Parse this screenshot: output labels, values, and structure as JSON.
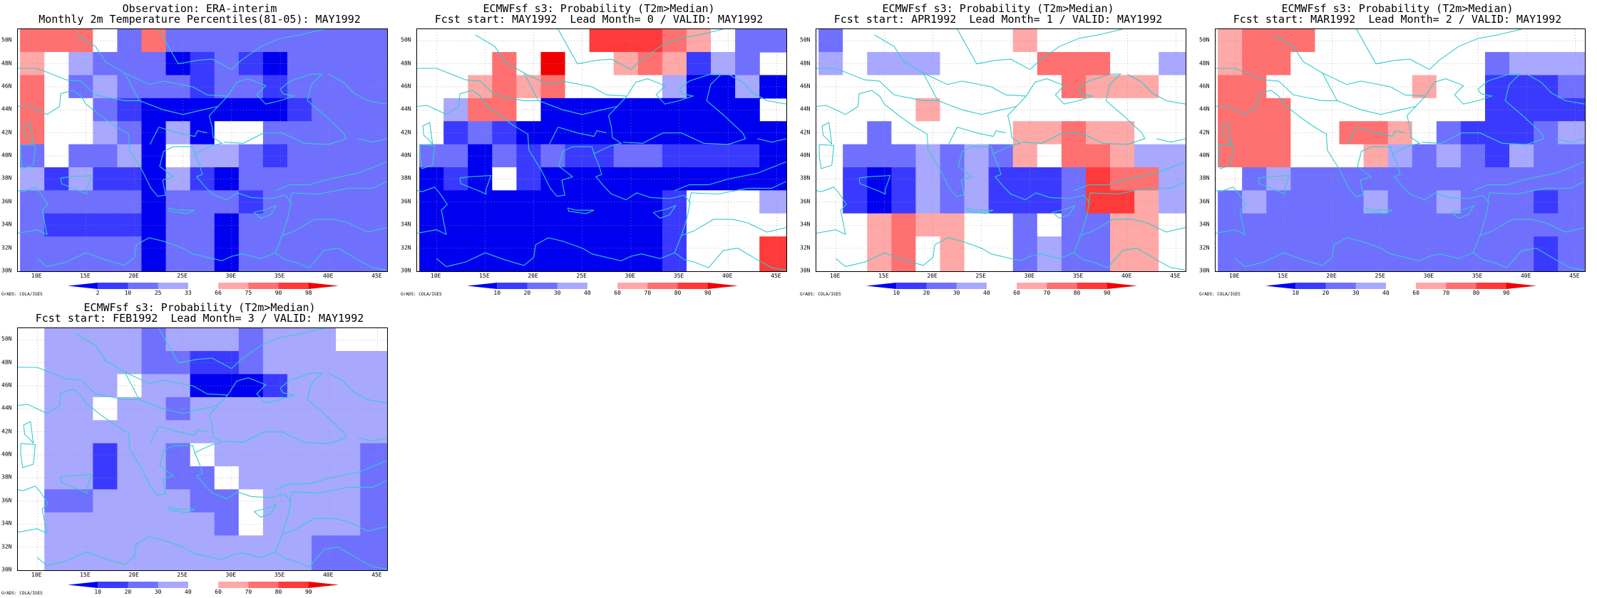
{
  "region": {
    "lat_min": 30,
    "lat_max": 51,
    "lon_min": 8,
    "lon_max": 46
  },
  "lat_ticks": [
    "30N",
    "32N",
    "34N",
    "36N",
    "38N",
    "40N",
    "42N",
    "44N",
    "46N",
    "48N",
    "50N"
  ],
  "lon_ticks": [
    "10E",
    "15E",
    "20E",
    "25E",
    "30E",
    "35E",
    "40E",
    "45E"
  ],
  "credit": "GrADS: COLA/IGES",
  "grid": {
    "lon_start": 8.25,
    "lat_top": 51.0,
    "dlon": 2.5,
    "dlat": 2.0,
    "cols": 15,
    "rows": 10
  },
  "palette": {
    "0": "#ffffff",
    "-1": "#a8a8ff",
    "-2": "#7070ff",
    "-3": "#3a3aff",
    "-4": "#0000f0",
    "1": "#ffa8a8",
    "2": "#ff7070",
    "3": "#ff3a3a",
    "4": "#f00000",
    "coast": "#33cccc"
  },
  "coast": [
    [
      [
        8,
        44.3
      ],
      [
        9,
        44.4
      ],
      [
        10,
        44.0
      ],
      [
        11,
        43.6
      ],
      [
        12.3,
        44.3
      ],
      [
        12.4,
        45.4
      ],
      [
        13.7,
        45.7
      ],
      [
        14.5,
        45.2
      ],
      [
        15,
        44.5
      ],
      [
        16.5,
        43.5
      ],
      [
        18,
        42.6
      ],
      [
        19.4,
        41.9
      ],
      [
        19.5,
        40.5
      ],
      [
        20.7,
        38.9
      ],
      [
        21.7,
        37.2
      ],
      [
        22.4,
        36.5
      ],
      [
        23.2,
        36.6
      ],
      [
        22.9,
        37.9
      ],
      [
        24,
        38.2
      ],
      [
        22.6,
        39.1
      ],
      [
        23,
        40.4
      ],
      [
        24,
        40.8
      ],
      [
        26,
        40.8
      ],
      [
        26.2,
        40.2
      ],
      [
        28,
        40.9
      ],
      [
        29,
        41.1
      ],
      [
        28.1,
        41.6
      ],
      [
        28,
        42.5
      ],
      [
        27.7,
        43.5
      ],
      [
        28.6,
        44.3
      ],
      [
        29.6,
        45.2
      ],
      [
        30.5,
        46.4
      ],
      [
        31.7,
        46.7
      ],
      [
        33.5,
        46.1
      ],
      [
        32.6,
        45.3
      ],
      [
        33.5,
        44.5
      ],
      [
        35,
        44.8
      ],
      [
        36.4,
        45.2
      ],
      [
        35.3,
        45.4
      ],
      [
        35,
        45.8
      ],
      [
        36,
        46.5
      ],
      [
        38.2,
        47.1
      ],
      [
        39.3,
        47.1
      ],
      [
        38.2,
        46.2
      ],
      [
        37.8,
        44.8
      ],
      [
        39.6,
        43.5
      ],
      [
        41.5,
        42
      ],
      [
        41.8,
        41.5
      ],
      [
        40,
        41
      ],
      [
        37.5,
        41.1
      ],
      [
        35.2,
        42
      ],
      [
        33.3,
        42
      ],
      [
        31.2,
        41.1
      ],
      [
        29.2,
        41.2
      ]
    ],
    [
      [
        26.2,
        40.2
      ],
      [
        26.7,
        39.2
      ],
      [
        27,
        38.4
      ],
      [
        26.4,
        38.2
      ],
      [
        27.3,
        37.3
      ],
      [
        28,
        36.7
      ],
      [
        29.5,
        36.2
      ],
      [
        30.6,
        36.8
      ],
      [
        32,
        36.4
      ],
      [
        34,
        36.3
      ],
      [
        35.5,
        36.6
      ],
      [
        36.1,
        36
      ],
      [
        35.8,
        34.7
      ],
      [
        35.2,
        33.1
      ],
      [
        34.5,
        31.6
      ],
      [
        33,
        31.1
      ],
      [
        31.1,
        31.5
      ],
      [
        30,
        31.3
      ],
      [
        29,
        30.9
      ]
    ],
    [
      [
        8,
        33.3
      ],
      [
        10,
        33.6
      ],
      [
        11,
        33.2
      ],
      [
        10.5,
        35.3
      ],
      [
        11.1,
        35.8
      ],
      [
        10.3,
        36.8
      ],
      [
        9.8,
        37.3
      ],
      [
        8.5,
        36.9
      ],
      [
        8,
        37
      ]
    ],
    [
      [
        10,
        31.1
      ],
      [
        11,
        30.4
      ],
      [
        12,
        30.6
      ],
      [
        13,
        30.8
      ],
      [
        15,
        31.6
      ],
      [
        17,
        31
      ],
      [
        19,
        30.5
      ],
      [
        20,
        31.2
      ],
      [
        20.2,
        32.3
      ],
      [
        21.5,
        32.9
      ],
      [
        23,
        32.6
      ],
      [
        25,
        32
      ],
      [
        26,
        31.5
      ],
      [
        29,
        30.9
      ]
    ],
    [
      [
        23.5,
        35.5
      ],
      [
        24.3,
        35.3
      ],
      [
        26.2,
        35.3
      ],
      [
        25.4,
        35
      ],
      [
        23.6,
        35.2
      ],
      [
        23.5,
        35.5
      ]
    ],
    [
      [
        32.3,
        35.1
      ],
      [
        33.7,
        35.4
      ],
      [
        34.6,
        35.7
      ],
      [
        34,
        34.9
      ],
      [
        33,
        34.6
      ],
      [
        32.3,
        35.1
      ]
    ],
    [
      [
        9.6,
        41
      ],
      [
        9.3,
        42.9
      ],
      [
        8.6,
        42.6
      ],
      [
        8.7,
        41.8
      ],
      [
        9.2,
        41.4
      ],
      [
        9.6,
        41
      ]
    ],
    [
      [
        8.3,
        41
      ],
      [
        9.8,
        40.9
      ],
      [
        9.6,
        39.2
      ],
      [
        8.5,
        38.9
      ],
      [
        8.3,
        40
      ],
      [
        8.3,
        41
      ]
    ],
    [
      [
        12.4,
        38.1
      ],
      [
        13.5,
        38.2
      ],
      [
        15.6,
        38.3
      ],
      [
        15.1,
        37.1
      ],
      [
        15.1,
        36.7
      ],
      [
        14.3,
        37
      ],
      [
        12.5,
        37.6
      ],
      [
        12.4,
        38.1
      ]
    ],
    [
      [
        36,
        36
      ],
      [
        36.2,
        36.8
      ],
      [
        39,
        36.7
      ],
      [
        42,
        37.2
      ],
      [
        44.5,
        37.2
      ],
      [
        46,
        37.8
      ]
    ],
    [
      [
        35.2,
        33.1
      ],
      [
        36.5,
        33.5
      ],
      [
        38.5,
        34.5
      ],
      [
        40.5,
        34.5
      ],
      [
        42,
        34.2
      ],
      [
        44,
        33.4
      ],
      [
        46,
        33.8
      ]
    ],
    [
      [
        34.5,
        31.6
      ],
      [
        35.5,
        31
      ],
      [
        36.5,
        30.8
      ],
      [
        38,
        30.3
      ],
      [
        39.5,
        31.8
      ],
      [
        41,
        32
      ],
      [
        43,
        31
      ],
      [
        44.5,
        30.3
      ],
      [
        46,
        30.1
      ]
    ],
    [
      [
        20.5,
        44.8
      ],
      [
        23,
        44
      ],
      [
        25,
        43.6
      ],
      [
        27,
        44
      ],
      [
        28.6,
        44.3
      ]
    ],
    [
      [
        19,
        47.2
      ],
      [
        21.5,
        46.2
      ],
      [
        23,
        46.5
      ],
      [
        26,
        46
      ],
      [
        27.5,
        45.3
      ],
      [
        29.6,
        45.2
      ]
    ],
    [
      [
        14,
        50.5
      ],
      [
        16,
        49.5
      ],
      [
        17,
        48.2
      ],
      [
        19,
        47.2
      ],
      [
        20.5,
        44.8
      ],
      [
        19,
        44.8
      ],
      [
        16,
        45.3
      ],
      [
        14.5,
        46.5
      ],
      [
        13,
        46.6
      ],
      [
        10,
        47.6
      ],
      [
        8,
        47.6
      ]
    ],
    [
      [
        22.5,
        51
      ],
      [
        23.5,
        49.5
      ],
      [
        24.5,
        48
      ],
      [
        26.5,
        48.3
      ],
      [
        28,
        48.4
      ],
      [
        30,
        47.5
      ],
      [
        31,
        48.3
      ],
      [
        33,
        49.5
      ],
      [
        35,
        50.2
      ],
      [
        37,
        50.5
      ],
      [
        39.5,
        51
      ]
    ],
    [
      [
        40,
        47.1
      ],
      [
        41.5,
        46.4
      ],
      [
        42.5,
        45.5
      ],
      [
        44,
        44.8
      ],
      [
        46,
        44.5
      ]
    ],
    [
      [
        43,
        41.5
      ],
      [
        44.5,
        41.2
      ],
      [
        46,
        41.5
      ]
    ],
    [
      [
        34.5,
        37
      ],
      [
        36,
        37.5
      ],
      [
        38,
        37.5
      ],
      [
        40,
        38
      ],
      [
        43,
        38.5
      ],
      [
        44.5,
        39
      ],
      [
        46,
        39.5
      ]
    ],
    [
      [
        21.6,
        41
      ],
      [
        22.5,
        42.5
      ],
      [
        24.5,
        42
      ],
      [
        26.2,
        41.7
      ],
      [
        26.5,
        42.2
      ],
      [
        27.5,
        42
      ]
    ]
  ],
  "panels": [
    {
      "title_line1": "Observation: ERA-interim",
      "title_line2": "Monthly 2m Temperature Percentiles(81-05): MAY1992",
      "colorbar_labels": [
        "2",
        "10",
        "25",
        "33",
        "66",
        "75",
        "90",
        "98"
      ],
      "colorbar_colors": [
        "#0000f0",
        "#3a3aff",
        "#7070ff",
        "#a8a8ff",
        "#ffffff",
        "#ffa8a8",
        "#ff7070",
        "#ff3a3a",
        "#f00000"
      ],
      "cells": [
        "2220-22-2-2-2-2-2-2-2-2-2-2",
        "10-1-2-2-2-4-3-2-3-4-2-2-2-2",
        "20-2-1-2-2-2-3-2-2-3-2-2-2-2",
        "200-2-3-4-4-4-4-4-4-3-2-2-2",
        "200-1-2-4-1-400-2-2-2-2-2-2",
        "-20-2-2-1-40-1-1-2-3-2-2-2-2",
        "-1-3-1-3-3-4-1-3-4-2-2-2-2-2-2",
        "-2-2-2-2-2-4-2-2-2-3-2-2-2-2-2",
        "-2-3-3-3-3-4-2-2-4-2-2-2-2-2-2",
        "-2-2-2-2-2-4-2-2-4-2-2-2-2-2-2"
      ]
    },
    {
      "title_line1": "ECMWFsf s3: Probability (T2m>Median)",
      "title_line2": "Fcst start: MAY1992  Lead Month= 0 / VALID: MAY1992",
      "colorbar_labels": [
        "10",
        "20",
        "30",
        "40",
        "60",
        "70",
        "80",
        "90"
      ],
      "colorbar_colors": [
        "#0000f0",
        "#3a3aff",
        "#7070ff",
        "#a8a8ff",
        "#ffffff",
        "#ffa8a8",
        "#ff7070",
        "#ff3a3a",
        "#f00000"
      ],
      "cells": [
        "0000000333210-2-2",
        "00020400121-3-1-2",
        "0012120000-1-4-4-1-4",
        "0-1220-4-4-4-4-4-4-4-4-4",
        "0-3-2-3-4-4-4-4-4-4-4-4-4-4-4",
        "-2-2-4-2-3-2-3-3-2-2-3-3-3-3-4",
        "-4-3-40-3-4-4-4-4-4-4-4-4-4-4",
        "-4-4-4-4-4-4-4-4-4-4-3000-1",
        "-4-4-4-4-4-4-4-4-4-4-30000",
        "-4-4-4-4-4-4-4-4-4-4-30003"
      ]
    },
    {
      "title_line1": "ECMWFsf s3: Probability (T2m>Median)",
      "title_line2": "Fcst start: APR1992  Lead Month= 1 / VALID: MAY1992",
      "colorbar_labels": [
        "10",
        "20",
        "30",
        "40",
        "60",
        "70",
        "80",
        "90"
      ],
      "colorbar_colors": [
        "#0000f0",
        "#3a3aff",
        "#7070ff",
        "#a8a8ff",
        "#ffffff",
        "#ffa8a8",
        "#ff7070",
        "#ff3a3a",
        "#f00000"
      ],
      "cells": [
        "-20000000100000",
        "-10-1-1-1000022200-1",
        "000000000021110",
        "000010000000000",
        "00-2000001121100",
        "0-2-2-2-1-2-1-210221-1-1",
        "0-3-4-3-1-2-1-3-3-3-2322-1",
        "0-3-4-3-1-2-1-3-3-3-2331-1",
        "00121100-20-2-2110",
        "00120100-2-1-2-2110"
      ]
    },
    {
      "title_line1": "ECMWFsf s3: Probability (T2m>Median)",
      "title_line2": "Fcst start: MAR1992  Lead Month= 2 / VALID: MAY1992",
      "colorbar_labels": [
        "10",
        "20",
        "30",
        "40",
        "60",
        "70",
        "80",
        "90"
      ],
      "colorbar_colors": [
        "#0000f0",
        "#3a3aff",
        "#7070ff",
        "#a8a8ff",
        "#ffffff",
        "#ffa8a8",
        "#ff7070",
        "#ff3a3a",
        "#f00000"
      ],
      "cells": [
        "122200000000000",
        "12200000000-2-1-1-1",
        "22000000100-3-3-3-2",
        "22200000000-3-3-3-3",
        "222002210-2-3-3-3-2-1",
        "2220001-1-2-1-2-3-1-2-2",
        "0-2-1-2-2-2-2-2-2-2-2-2-2-2-2",
        "-2-1-2-2-2-2-1-2-2-1-2-2-2-3-2",
        "-2-2-2-2-2-2-2-2-2-2-2-2-2-2-2",
        "-2-2-2-2-2-2-2-2-2-2-2-2-2-3-2"
      ]
    },
    {
      "title_line1": "ECMWFsf s3: Probability (T2m>Median)",
      "title_line2": "Fcst start: FEB1992  Lead Month= 3 / VALID: MAY1992",
      "colorbar_labels": [
        "10",
        "20",
        "30",
        "40",
        "60",
        "70",
        "80",
        "90"
      ],
      "colorbar_colors": [
        "#0000f0",
        "#3a3aff",
        "#7070ff",
        "#a8a8ff",
        "#ffffff",
        "#ffa8a8",
        "#ff7070",
        "#ff3a3a",
        "#f00000"
      ],
      "cells": [
        "0-1-1-1-1-2-1-1-1-2-1-1-100",
        "0-1-1-1-1-2-2-3-3-2-1-1-1-1-1",
        "0-1-1-10-1-1-4-4-4-3-1-1-1-1",
        "0-1-10-1-1-2-1-1-1-1-1-1-1-1",
        "0-1-1-1-1-1-1-1-1-1-1-1-1-1-1",
        "0-1-1-3-1-1-20-1-1-1-1-1-1-2",
        "0-1-1-3-1-1-2-20-1-1-1-1-1-2",
        "0-2-2-1-1-1-1-2-20-1-1-1-1-2",
        "0-1-1-1-1-1-1-1-20-1-1-1-1-2",
        "0-1-1-1-1-1-1-1-1-1-1-1-2-2-2"
      ]
    }
  ]
}
